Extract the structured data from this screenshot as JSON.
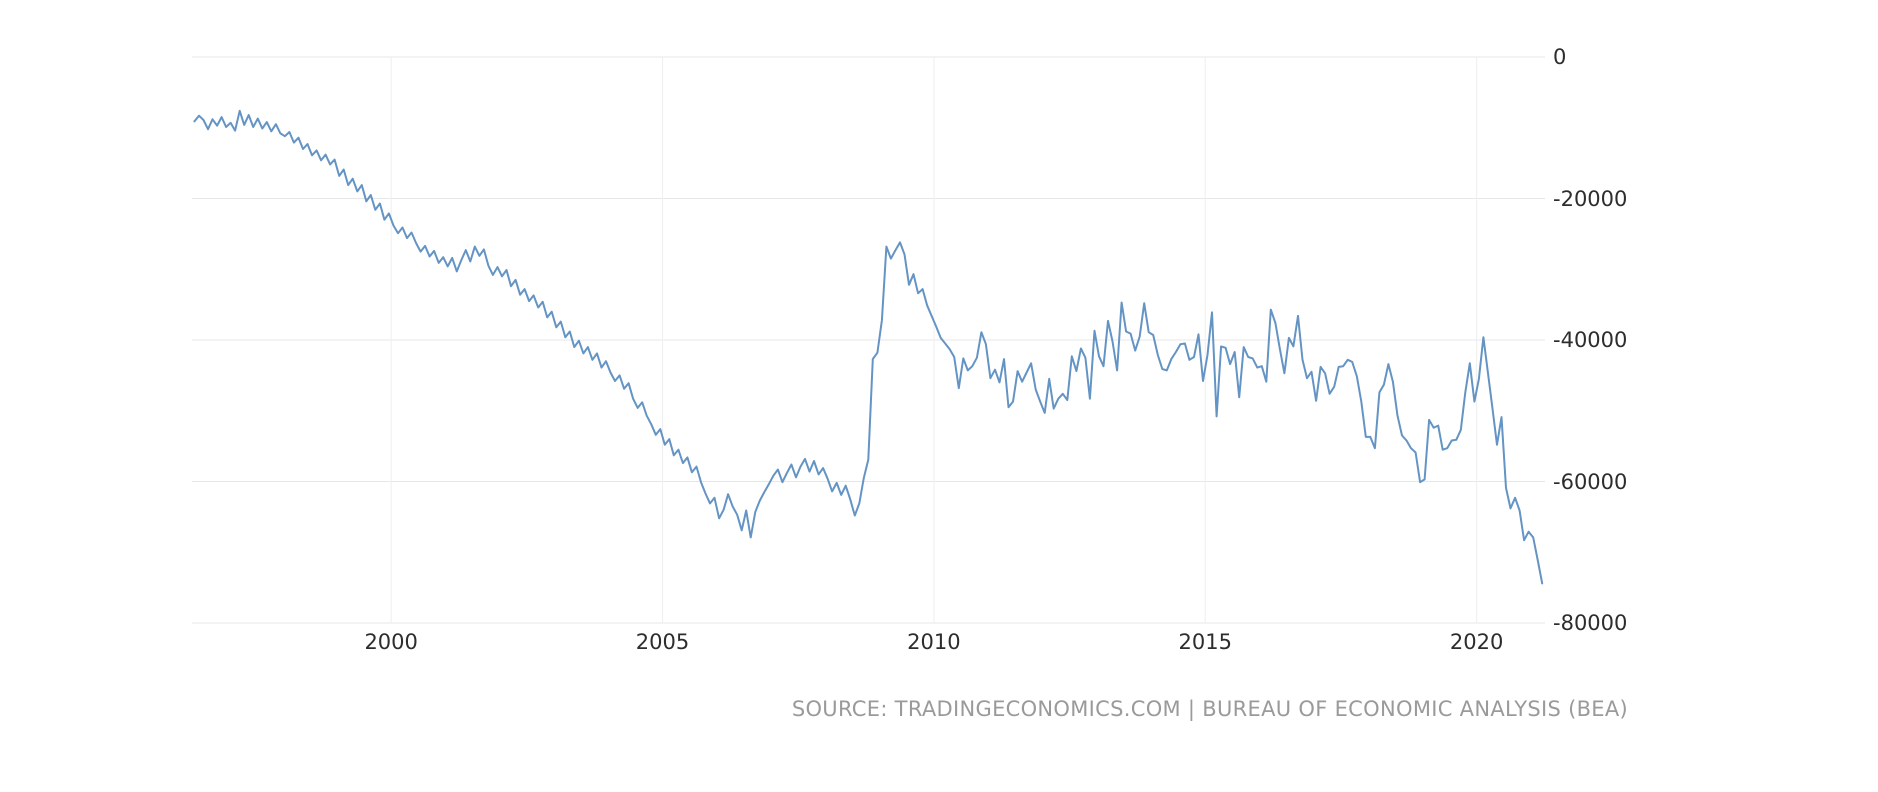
{
  "source": {
    "text": "SOURCE: TRADINGECONOMICS.COM | BUREAU OF ECONOMIC ANALYSIS (BEA)"
  },
  "chart_data": {
    "type": "line",
    "series_name": "balance-of-trade",
    "line_color": "#6494c4",
    "grid": true,
    "x_domain": [
      1996.33,
      2021.26
    ],
    "y_domain": [
      -80000,
      0
    ],
    "x_ticks": [
      2000,
      2005,
      2010,
      2015,
      2020
    ],
    "x_tick_labels": [
      "2000",
      "2005",
      "2010",
      "2015",
      "2020"
    ],
    "y_ticks": [
      0,
      -20000,
      -40000,
      -60000,
      -80000
    ],
    "y_tick_labels": [
      "0",
      "-20000",
      "-40000",
      "-60000",
      "-80000"
    ],
    "x_start": 1996.375,
    "x_step": 0.0833333,
    "values": [
      -9100,
      -8300,
      -8900,
      -10200,
      -8800,
      -9700,
      -8500,
      -9900,
      -9300,
      -10400,
      -7600,
      -9600,
      -8200,
      -9900,
      -8700,
      -10100,
      -9200,
      -10500,
      -9500,
      -10800,
      -11200,
      -10600,
      -12100,
      -11400,
      -13000,
      -12300,
      -13900,
      -13200,
      -14600,
      -13800,
      -15200,
      -14500,
      -16800,
      -15900,
      -18100,
      -17200,
      -19000,
      -18100,
      -20400,
      -19500,
      -21600,
      -20700,
      -23000,
      -22100,
      -23800,
      -24900,
      -24100,
      -25600,
      -24800,
      -26300,
      -27500,
      -26700,
      -28200,
      -27400,
      -29100,
      -28300,
      -29600,
      -28400,
      -30300,
      -28700,
      -27300,
      -28900,
      -26800,
      -28100,
      -27200,
      -29500,
      -30800,
      -29700,
      -31000,
      -30100,
      -32400,
      -31500,
      -33600,
      -32800,
      -34500,
      -33700,
      -35400,
      -34600,
      -36800,
      -36000,
      -38200,
      -37400,
      -39600,
      -38800,
      -41000,
      -40100,
      -41900,
      -41000,
      -42800,
      -41900,
      -43900,
      -43000,
      -44600,
      -45800,
      -45000,
      -46900,
      -46100,
      -48300,
      -49600,
      -48800,
      -50700,
      -51900,
      -53400,
      -52600,
      -54800,
      -54000,
      -56300,
      -55500,
      -57400,
      -56600,
      -58700,
      -57900,
      -60100,
      -61700,
      -63100,
      -62300,
      -65200,
      -64000,
      -61800,
      -63500,
      -64700,
      -66900,
      -64100,
      -67900,
      -64300,
      -62700,
      -61500,
      -60400,
      -59200,
      -58300,
      -60100,
      -58800,
      -57600,
      -59400,
      -57900,
      -56800,
      -58600,
      -57100,
      -59000,
      -58100,
      -59600,
      -61400,
      -60200,
      -61900,
      -60600,
      -62500,
      -64800,
      -63100,
      -59500,
      -56900,
      -42700,
      -41800,
      -37200,
      -26800,
      -28500,
      -27300,
      -26200,
      -27900,
      -32200,
      -30700,
      -33400,
      -32800,
      -35100,
      -36600,
      -38100,
      -39700,
      -40500,
      -41300,
      -42400,
      -46800,
      -42600,
      -44300,
      -43700,
      -42500,
      -38900,
      -40600,
      -45400,
      -44200,
      -46000,
      -42700,
      -49500,
      -48700,
      -44400,
      -45900,
      -44600,
      -43300,
      -47000,
      -48700,
      -50300,
      -45500,
      -49700,
      -48300,
      -47600,
      -48500,
      -42300,
      -44400,
      -41200,
      -42500,
      -48300,
      -38700,
      -42300,
      -43700,
      -37300,
      -40200,
      -44300,
      -34700,
      -38800,
      -39100,
      -41500,
      -39500,
      -34800,
      -38900,
      -39300,
      -42100,
      -44100,
      -44300,
      -42700,
      -41700,
      -40600,
      -40500,
      -42800,
      -42400,
      -39200,
      -45800,
      -42100,
      -36100,
      -50800,
      -40900,
      -41100,
      -43400,
      -41700,
      -48100,
      -41000,
      -42400,
      -42600,
      -43900,
      -43700,
      -45900,
      -35700,
      -37600,
      -41300,
      -44700,
      -39700,
      -40900,
      -36600,
      -42800,
      -45400,
      -44500,
      -48600,
      -43800,
      -44700,
      -47600,
      -46600,
      -43800,
      -43700,
      -42800,
      -43100,
      -45100,
      -48700,
      -53700,
      -53700,
      -55300,
      -47400,
      -46300,
      -43400,
      -45900,
      -50700,
      -53500,
      -54200,
      -55300,
      -55900,
      -60100,
      -59700,
      -51300,
      -52400,
      -52100,
      -55500,
      -55300,
      -54200,
      -54100,
      -52700,
      -47400,
      -43300,
      -48700,
      -45500,
      -39600,
      -44600,
      -49600,
      -54800,
      -50900,
      -60900,
      -63800,
      -62300,
      -64100,
      -68300,
      -67100,
      -67900,
      -71100,
      -74400
    ]
  }
}
